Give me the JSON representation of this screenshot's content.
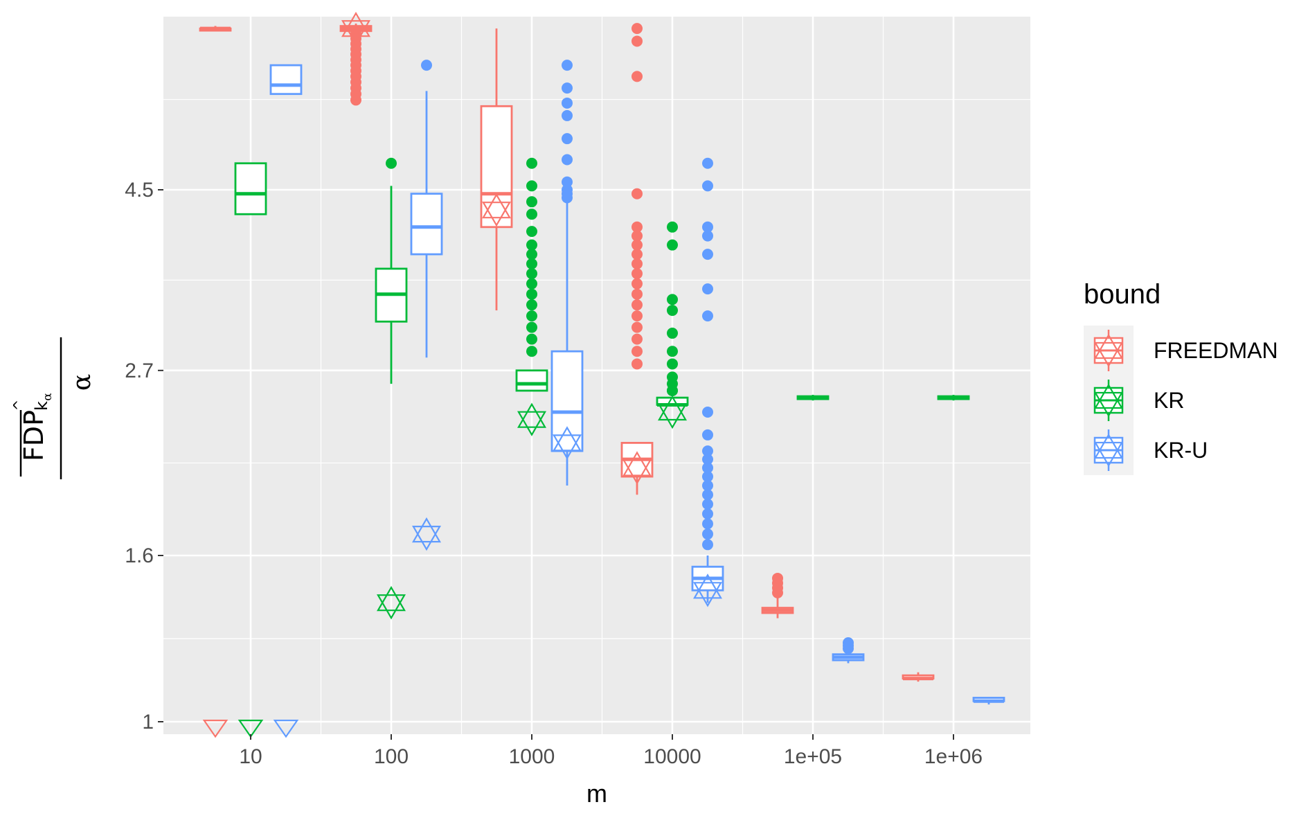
{
  "chart_data": {
    "type": "boxplot",
    "xlabel": "m",
    "ylabel": {
      "main": "FDP",
      "sub_k": "k",
      "sub_alpha": "α",
      "hat": "^",
      "denominator": "α"
    },
    "x_ticks": [
      "10",
      "100",
      "1000",
      "10000",
      "1e+05",
      "1e+06"
    ],
    "y_ticks": [
      "1",
      "1.6",
      "2.7",
      "4.5"
    ],
    "y_scale": "log",
    "legend": {
      "title": "bound",
      "position": "right",
      "entries": [
        "FREEDMAN",
        "KR",
        "KR-U"
      ]
    },
    "colors": {
      "FREEDMAN": "#F8766D",
      "KR": "#00BA38",
      "KR-U": "#619CFF"
    },
    "groups": [
      {
        "m": "10",
        "series": "FREEDMAN",
        "x": 10,
        "box": {
          "lower": 7.15,
          "q1": 7.1,
          "median": 7.1,
          "q3": 7.1,
          "upper": 7.15
        },
        "outliers": [],
        "star": 1.0
      },
      {
        "m": "10",
        "series": "KR",
        "x": 10,
        "box": {
          "lower": 4.2,
          "q1": 4.2,
          "median": 4.45,
          "q3": 4.85,
          "upper": 4.85
        },
        "outliers": [],
        "star": 1.0
      },
      {
        "m": "10",
        "series": "KR-U",
        "x": 10,
        "box": {
          "lower": 5.9,
          "q1": 5.9,
          "median": 6.05,
          "q3": 6.4,
          "upper": 6.4
        },
        "outliers": [],
        "star": 1.0
      },
      {
        "m": "100",
        "series": "FREEDMAN",
        "x": 100,
        "box": {
          "lower": 7.05,
          "q1": 7.05,
          "median": 7.1,
          "q3": 7.15,
          "upper": 7.2
        },
        "outliers": [
          7.0,
          6.9,
          6.8,
          6.7,
          6.6,
          6.5,
          6.4,
          6.3,
          6.2,
          6.1,
          6.0,
          5.9,
          5.8
        ],
        "star": 7.1
      },
      {
        "m": "100",
        "series": "KR",
        "x": 100,
        "box": {
          "lower": 2.6,
          "q1": 3.1,
          "median": 3.35,
          "q3": 3.6,
          "upper": 4.55
        },
        "outliers": [
          4.85
        ],
        "star": 1.4
      },
      {
        "m": "100",
        "series": "KR-U",
        "x": 100,
        "box": {
          "lower": 2.8,
          "q1": 3.75,
          "median": 4.05,
          "q3": 4.45,
          "upper": 5.95
        },
        "outliers": [
          6.4
        ],
        "star": 1.7
      },
      {
        "m": "1000",
        "series": "FREEDMAN",
        "x": 1000,
        "box": {
          "lower": 3.2,
          "q1": 4.05,
          "median": 4.45,
          "q3": 5.7,
          "upper": 7.1
        },
        "outliers": [],
        "star": 4.25
      },
      {
        "m": "1000",
        "series": "KR",
        "x": 1000,
        "box": {
          "lower": 2.55,
          "q1": 2.55,
          "median": 2.6,
          "q3": 2.7,
          "upper": 2.7
        },
        "outliers": [
          4.85,
          4.55,
          4.35,
          4.2,
          4.0,
          3.85,
          3.75,
          3.65,
          3.55,
          3.45,
          3.35,
          3.25,
          3.15,
          3.05,
          2.95,
          2.85
        ],
        "star": 2.35
      },
      {
        "m": "1000",
        "series": "KR-U",
        "x": 1000,
        "box": {
          "lower": 1.95,
          "q1": 2.15,
          "median": 2.4,
          "q3": 2.85,
          "upper": 4.35
        },
        "outliers": [
          6.4,
          6.0,
          5.75,
          5.55,
          5.2,
          4.9,
          4.6,
          4.5,
          4.45,
          4.4
        ],
        "star": 2.2
      },
      {
        "m": "10000",
        "series": "FREEDMAN",
        "x": 10000,
        "box": {
          "lower": 1.9,
          "q1": 2.0,
          "median": 2.1,
          "q3": 2.2,
          "upper": 2.2
        },
        "outliers": [
          7.1,
          6.85,
          6.2,
          4.45,
          4.05,
          3.95,
          3.85,
          3.75,
          3.65,
          3.55,
          3.45,
          3.35,
          3.25,
          3.15,
          3.05,
          2.95,
          2.85,
          2.75
        ],
        "star": 2.05
      },
      {
        "m": "10000",
        "series": "KR",
        "x": 10000,
        "box": {
          "lower": 2.45,
          "q1": 2.45,
          "median": 2.45,
          "q3": 2.5,
          "upper": 2.5
        },
        "outliers": [
          4.05,
          3.85,
          3.3,
          3.2,
          3.0,
          2.85,
          2.75,
          2.65,
          2.6,
          2.55,
          2.55
        ],
        "star": 2.4
      },
      {
        "m": "10000",
        "series": "KR-U",
        "x": 10000,
        "box": {
          "lower": 1.4,
          "q1": 1.45,
          "median": 1.5,
          "q3": 1.55,
          "upper": 1.6
        },
        "outliers": [
          4.85,
          4.55,
          4.05,
          3.95,
          3.75,
          3.4,
          3.15,
          2.4,
          2.25,
          2.15,
          2.1,
          2.05,
          2.0,
          1.95,
          1.9,
          1.85,
          1.8,
          1.75,
          1.7,
          1.65
        ],
        "star": 1.45
      },
      {
        "m": "1e+05",
        "series": "FREEDMAN",
        "x": 100000,
        "box": {
          "lower": 1.34,
          "q1": 1.36,
          "median": 1.37,
          "q3": 1.38,
          "upper": 1.42
        },
        "outliers": [
          1.44,
          1.46,
          1.48,
          1.5
        ],
        "star": null
      },
      {
        "m": "1e+05",
        "series": "KR",
        "x": 100000,
        "box": {
          "lower": 2.48,
          "q1": 2.49,
          "median": 2.5,
          "q3": 2.51,
          "upper": 2.52
        },
        "outliers": [],
        "star": null
      },
      {
        "m": "1e+05",
        "series": "KR-U",
        "x": 100000,
        "box": {
          "lower": 1.18,
          "q1": 1.19,
          "median": 1.2,
          "q3": 1.21,
          "upper": 1.22
        },
        "outliers": [
          1.23,
          1.24,
          1.25
        ],
        "star": null
      },
      {
        "m": "1e+06",
        "series": "FREEDMAN",
        "x": 1000000,
        "box": {
          "lower": 1.12,
          "q1": 1.13,
          "median": 1.13,
          "q3": 1.14,
          "upper": 1.15
        },
        "outliers": [],
        "star": null
      },
      {
        "m": "1e+06",
        "series": "KR",
        "x": 1000000,
        "box": {
          "lower": 2.48,
          "q1": 2.49,
          "median": 2.5,
          "q3": 2.51,
          "upper": 2.52
        },
        "outliers": [],
        "star": null
      },
      {
        "m": "1e+06",
        "series": "KR-U",
        "x": 1000000,
        "box": {
          "lower": 1.05,
          "q1": 1.06,
          "median": 1.06,
          "q3": 1.07,
          "upper": 1.07
        },
        "outliers": [],
        "star": null
      }
    ]
  }
}
